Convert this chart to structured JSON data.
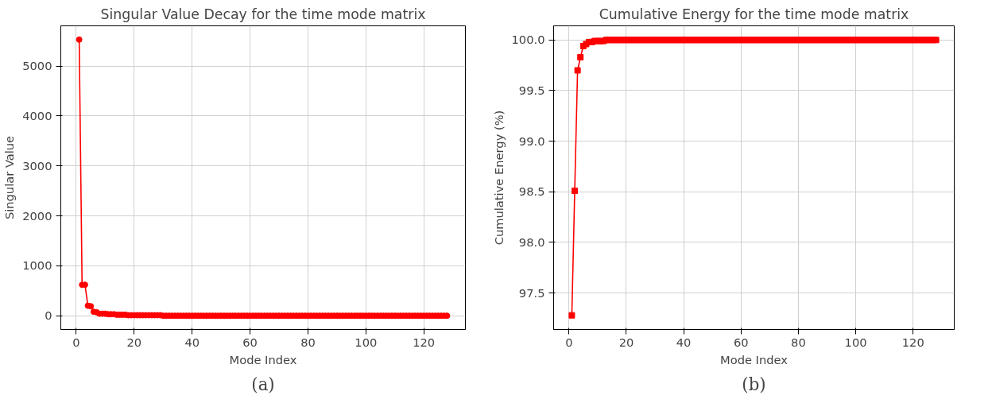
{
  "chart_data": [
    {
      "type": "line",
      "title": "Singular Value Decay for the time mode matrix",
      "xlabel": "Mode Index",
      "ylabel": "Singular Value",
      "annotations": [
        "(a)"
      ],
      "marker": "circle",
      "grid": true,
      "x": [
        1,
        2,
        3,
        4,
        5,
        6,
        7,
        8,
        9,
        10,
        11,
        12,
        13,
        14,
        15,
        16,
        17,
        18,
        19,
        20,
        21,
        22,
        23,
        24,
        25,
        26,
        27,
        28,
        29,
        30,
        31,
        32,
        33,
        34,
        35,
        36,
        37,
        38,
        39,
        40,
        41,
        42,
        43,
        44,
        45,
        46,
        47,
        48,
        49,
        50,
        51,
        52,
        53,
        54,
        55,
        56,
        57,
        58,
        59,
        60,
        61,
        62,
        63,
        64,
        65,
        66,
        67,
        68,
        69,
        70,
        71,
        72,
        73,
        74,
        75,
        76,
        77,
        78,
        79,
        80,
        81,
        82,
        83,
        84,
        85,
        86,
        87,
        88,
        89,
        90,
        91,
        92,
        93,
        94,
        95,
        96,
        97,
        98,
        99,
        100,
        101,
        102,
        103,
        104,
        105,
        106,
        107,
        108,
        109,
        110,
        111,
        112,
        113,
        114,
        115,
        116,
        117,
        118,
        119,
        120,
        121,
        122,
        123,
        124,
        125,
        126,
        127,
        128
      ],
      "series": [
        {
          "color": "#ff0000",
          "values": [
            5530,
            620,
            620,
            200,
            190,
            80,
            70,
            40,
            40,
            40,
            30,
            30,
            30,
            20,
            20,
            20,
            20,
            10,
            10,
            10,
            10,
            10,
            10,
            10,
            10,
            10,
            10,
            10,
            10,
            0,
            0,
            0,
            0,
            0,
            0,
            0,
            0,
            0,
            0,
            0,
            0,
            0,
            0,
            0,
            0,
            0,
            0,
            0,
            0,
            0,
            0,
            0,
            0,
            0,
            0,
            0,
            0,
            0,
            0,
            0,
            0,
            0,
            0,
            0,
            0,
            0,
            0,
            0,
            0,
            0,
            0,
            0,
            0,
            0,
            0,
            0,
            0,
            0,
            0,
            0,
            0,
            0,
            0,
            0,
            0,
            0,
            0,
            0,
            0,
            0,
            0,
            0,
            0,
            0,
            0,
            0,
            0,
            0,
            0,
            0,
            0,
            0,
            0,
            0,
            0,
            0,
            0,
            0,
            0,
            0,
            0,
            0,
            0,
            0,
            0,
            0,
            0,
            0,
            0,
            0,
            0,
            0,
            0,
            0,
            0,
            0,
            0,
            0
          ]
        }
      ],
      "xlim": [
        -5.35,
        134.35
      ],
      "xticks": [
        0,
        20,
        40,
        60,
        80,
        100,
        120
      ],
      "ylim": [
        -276,
        5806
      ],
      "yticks": [
        0,
        1000,
        2000,
        3000,
        4000,
        5000
      ]
    },
    {
      "type": "line",
      "title": "Cumulative Energy for the time mode matrix",
      "xlabel": "Mode Index",
      "ylabel": "Cumulative Energy (%)",
      "annotations": [
        "(b)"
      ],
      "marker": "square",
      "grid": true,
      "x": [
        1,
        2,
        3,
        4,
        5,
        6,
        7,
        8,
        9,
        10,
        11,
        12,
        13,
        14,
        15,
        16,
        17,
        18,
        19,
        20,
        21,
        22,
        23,
        24,
        25,
        26,
        27,
        28,
        29,
        30,
        31,
        32,
        33,
        34,
        35,
        36,
        37,
        38,
        39,
        40,
        41,
        42,
        43,
        44,
        45,
        46,
        47,
        48,
        49,
        50,
        51,
        52,
        53,
        54,
        55,
        56,
        57,
        58,
        59,
        60,
        61,
        62,
        63,
        64,
        65,
        66,
        67,
        68,
        69,
        70,
        71,
        72,
        73,
        74,
        75,
        76,
        77,
        78,
        79,
        80,
        81,
        82,
        83,
        84,
        85,
        86,
        87,
        88,
        89,
        90,
        91,
        92,
        93,
        94,
        95,
        96,
        97,
        98,
        99,
        100,
        101,
        102,
        103,
        104,
        105,
        106,
        107,
        108,
        109,
        110,
        111,
        112,
        113,
        114,
        115,
        116,
        117,
        118,
        119,
        120,
        121,
        122,
        123,
        124,
        125,
        126,
        127,
        128
      ],
      "series": [
        {
          "color": "#ff0000",
          "values": [
            97.28,
            98.51,
            99.7,
            99.83,
            99.94,
            99.96,
            99.98,
            99.98,
            99.99,
            99.99,
            99.99,
            99.99,
            100,
            100,
            100,
            100,
            100,
            100,
            100,
            100,
            100,
            100,
            100,
            100,
            100,
            100,
            100,
            100,
            100,
            100,
            100,
            100,
            100,
            100,
            100,
            100,
            100,
            100,
            100,
            100,
            100,
            100,
            100,
            100,
            100,
            100,
            100,
            100,
            100,
            100,
            100,
            100,
            100,
            100,
            100,
            100,
            100,
            100,
            100,
            100,
            100,
            100,
            100,
            100,
            100,
            100,
            100,
            100,
            100,
            100,
            100,
            100,
            100,
            100,
            100,
            100,
            100,
            100,
            100,
            100,
            100,
            100,
            100,
            100,
            100,
            100,
            100,
            100,
            100,
            100,
            100,
            100,
            100,
            100,
            100,
            100,
            100,
            100,
            100,
            100,
            100,
            100,
            100,
            100,
            100,
            100,
            100,
            100,
            100,
            100,
            100,
            100,
            100,
            100,
            100,
            100,
            100,
            100,
            100,
            100,
            100,
            100,
            100,
            100,
            100,
            100,
            100,
            100
          ]
        }
      ],
      "xlim": [
        -5.35,
        134.35
      ],
      "xticks": [
        0,
        20,
        40,
        60,
        80,
        100,
        120
      ],
      "ylim": [
        97.14,
        100.14
      ],
      "yticks": [
        {
          "value": 97.5,
          "label": "97.5"
        },
        {
          "value": 98,
          "label": "98.0"
        },
        {
          "value": 98.5,
          "label": "98.5"
        },
        {
          "value": 99,
          "label": "99.0"
        },
        {
          "value": 99.5,
          "label": "99.5"
        },
        {
          "value": 100,
          "label": "100.0"
        }
      ]
    }
  ]
}
